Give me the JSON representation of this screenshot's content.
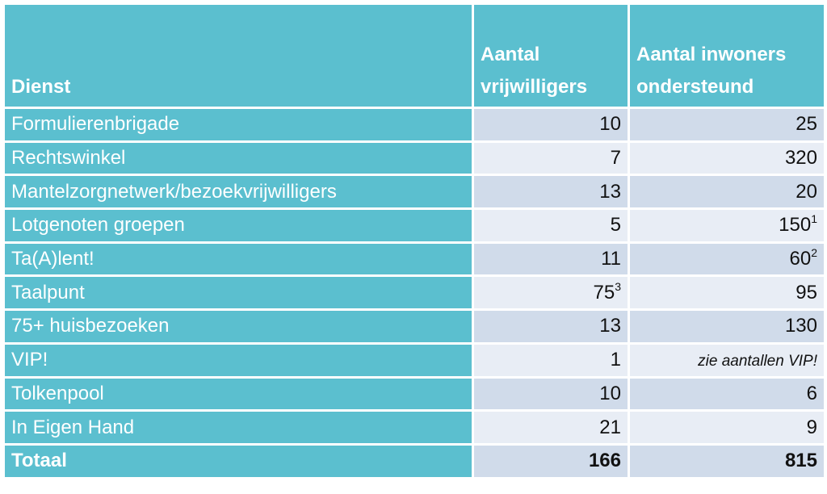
{
  "table": {
    "header": [
      "Dienst",
      "Aantal vrijwilligers",
      "Aantal inwoners ondersteund"
    ],
    "rows": [
      {
        "dienst": "Formulierenbrigade",
        "vrijwilligers": 10,
        "inwoners": 25
      },
      {
        "dienst": "Rechtswinkel",
        "vrijwilligers": 7,
        "inwoners": 320
      },
      {
        "dienst": "Mantelzorgnetwerk/bezoekvrijwilligers",
        "vrijwilligers": 13,
        "inwoners": 20
      },
      {
        "dienst": "Lotgenoten groepen",
        "vrijwilligers": 5,
        "inwoners": 150,
        "inwoners_note": "1"
      },
      {
        "dienst": "Ta(A)lent!",
        "vrijwilligers": 11,
        "inwoners": 60,
        "inwoners_note": "2"
      },
      {
        "dienst": "Taalpunt",
        "vrijwilligers": 75,
        "vrijwilligers_note": "3",
        "inwoners": 95
      },
      {
        "dienst": "75+ huisbezoeken",
        "vrijwilligers": 13,
        "inwoners": 130
      },
      {
        "dienst": "VIP!",
        "vrijwilligers": 1,
        "inwoners": "zie aantallen VIP!"
      },
      {
        "dienst": "Tolkenpool",
        "vrijwilligers": 10,
        "inwoners": 6
      },
      {
        "dienst": "In Eigen Hand",
        "vrijwilligers": 21,
        "inwoners": 9
      }
    ],
    "total": {
      "dienst": "Totaal",
      "vrijwilligers": 166,
      "inwoners": 815
    }
  }
}
